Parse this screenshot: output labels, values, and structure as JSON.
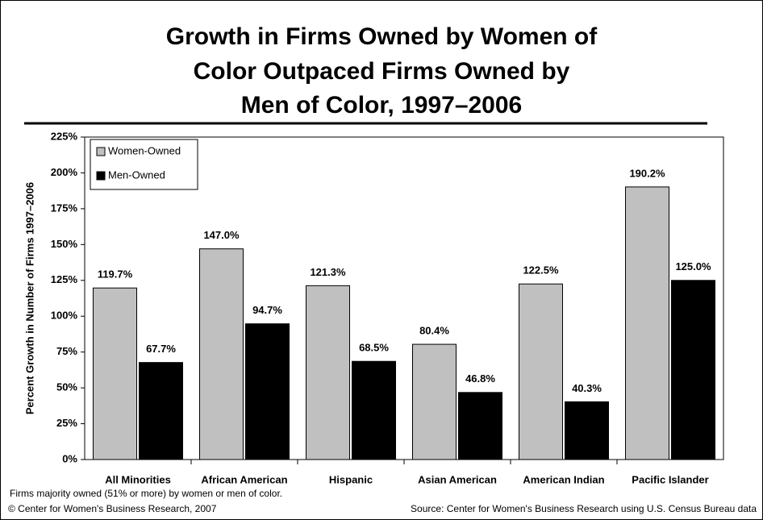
{
  "chart_data": {
    "type": "bar",
    "title": [
      "Growth in Firms Owned by Women of",
      "Color Outpaced Firms Owned by",
      "Men of Color, 1997–2006"
    ],
    "ylabel": "Percent Growth in Number of Firms 1997–2006",
    "categories": [
      "All Minorities",
      "African American",
      "Hispanic",
      "Asian American",
      "American Indian",
      "Pacific Islander"
    ],
    "series": [
      {
        "name": "Women-Owned",
        "color": "#c0c0c0",
        "values": [
          119.7,
          147.0,
          121.3,
          80.4,
          122.5,
          190.2
        ],
        "value_labels": [
          "119.7%",
          "147.0%",
          "121.3%",
          "80.4%",
          "122.5%",
          "190.2%"
        ]
      },
      {
        "name": "Men-Owned",
        "color": "#000000",
        "values": [
          67.7,
          94.7,
          68.5,
          46.8,
          40.3,
          125.0
        ],
        "value_labels": [
          "67.7%",
          "94.7%",
          "68.5%",
          "46.8%",
          "40.3%",
          "125.0%"
        ]
      }
    ],
    "ylim": [
      0,
      225
    ],
    "yticks": [
      {
        "value": 0,
        "label": "0%"
      },
      {
        "value": 25,
        "label": "25%"
      },
      {
        "value": 50,
        "label": "50%"
      },
      {
        "value": 75,
        "label": "75%"
      },
      {
        "value": 100,
        "label": "100%"
      },
      {
        "value": 125,
        "label": "125%"
      },
      {
        "value": 150,
        "label": "150%"
      },
      {
        "value": 175,
        "label": "175%"
      },
      {
        "value": 200,
        "label": "200%"
      },
      {
        "value": 225,
        "label": "225%"
      }
    ],
    "legend": "top-left",
    "footnote": "Firms majority owned (51% or more) by women or men of color.",
    "copyright": "© Center for Women's Business Research, 2007",
    "source": "Source: Center for Women's Business Research using U.S. Census Bureau data"
  }
}
